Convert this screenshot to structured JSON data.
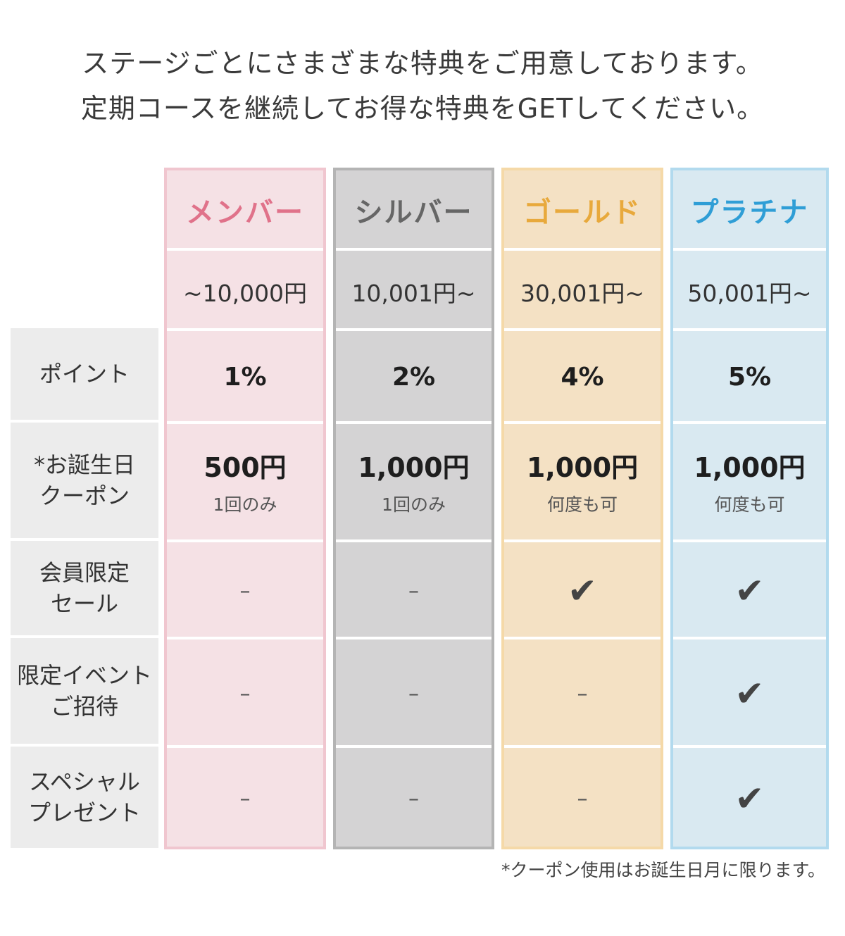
{
  "intro": {
    "line1": "ステージごとにさまざまな特典をご用意しております。",
    "line2": "定期コースを継続してお得な特典をGETしてください。"
  },
  "row_labels": {
    "point": "ポイント",
    "birthday_line1": "*お誕生日",
    "birthday_line2": "クーポン",
    "sale_line1": "会員限定",
    "sale_line2": "セール",
    "event_line1": "限定イベント",
    "event_line2": "ご招待",
    "gift_line1": "スペシャル",
    "gift_line2": "プレゼント"
  },
  "tiers": [
    {
      "name": "メンバー",
      "range": "~10,000円",
      "point": "1%",
      "coupon_amount": "500円",
      "coupon_note": "1回のみ",
      "sale": "–",
      "event": "–",
      "gift": "–",
      "accent": "#e0728a",
      "bg": "#f5e1e5",
      "border": "#f0c6cf"
    },
    {
      "name": "シルバー",
      "range": "10,001円~",
      "point": "2%",
      "coupon_amount": "1,000円",
      "coupon_note": "1回のみ",
      "sale": "–",
      "event": "–",
      "gift": "–",
      "accent": "#666666",
      "bg": "#d4d3d4",
      "border": "#b4b4b4"
    },
    {
      "name": "ゴールド",
      "range": "30,001円~",
      "point": "4%",
      "coupon_amount": "1,000円",
      "coupon_note": "何度も可",
      "sale": "✔",
      "event": "–",
      "gift": "–",
      "accent": "#e8a93c",
      "bg": "#f4e1c4",
      "border": "#f5d9a8"
    },
    {
      "name": "プラチナ",
      "range": "50,001円~",
      "point": "5%",
      "coupon_amount": "1,000円",
      "coupon_note": "何度も可",
      "sale": "✔",
      "event": "✔",
      "gift": "✔",
      "accent": "#2f9ed6",
      "bg": "#d9e9f1",
      "border": "#b2daee"
    }
  ],
  "footnote": "*クーポン使用はお誕生日月に限ります。"
}
